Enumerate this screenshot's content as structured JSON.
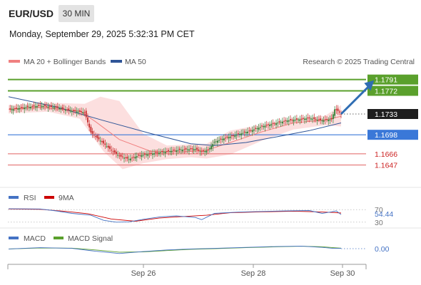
{
  "header": {
    "symbol": "EUR/USD",
    "timeframe": "30 MIN",
    "datetime": "Monday, September 29, 2025 5:32:31 PM CET"
  },
  "legend": {
    "ma20_label": "MA 20 + Bollinger Bands",
    "ma50_label": "MA 50",
    "credit": "Research © 2025 Trading Central",
    "rsi_label": "RSI",
    "rsi_ma_label": "9MA",
    "macd_label": "MACD",
    "macd_signal_label": "MACD Signal"
  },
  "colors": {
    "ma20": "#f08080",
    "ma50": "#2f5597",
    "resistance": "#5aa02c",
    "pivot": "#3a78d8",
    "support": "#e06060",
    "up_candle": "#2e7d32",
    "down_candle": "#c62828",
    "arrow": "#2f6db3"
  },
  "chart_data": [
    {
      "type": "candlestick",
      "ylim": [
        1.1625,
        1.1805
      ],
      "x_ticks": [
        "Sep 26",
        "Sep 28",
        "Sep 30"
      ],
      "current_price": "1.1733",
      "levels": [
        {
          "label": "1.1791",
          "value": 1.1791,
          "kind": "resistance"
        },
        {
          "label": "1.1772",
          "value": 1.1772,
          "kind": "resistance"
        },
        {
          "label": "1.1698",
          "value": 1.1698,
          "kind": "pivot"
        },
        {
          "label": "1.1666",
          "value": 1.1666,
          "kind": "support"
        },
        {
          "label": "1.1647",
          "value": 1.1647,
          "kind": "support"
        }
      ],
      "close_path": [
        [
          0,
          1.174
        ],
        [
          10,
          1.1744
        ],
        [
          20,
          1.1747
        ],
        [
          30,
          1.1744
        ],
        [
          40,
          1.1738
        ],
        [
          48,
          1.1736
        ],
        [
          52,
          1.1702
        ],
        [
          58,
          1.1688
        ],
        [
          64,
          1.1674
        ],
        [
          70,
          1.1662
        ],
        [
          76,
          1.1657
        ],
        [
          82,
          1.1663
        ],
        [
          90,
          1.1666
        ],
        [
          100,
          1.167
        ],
        [
          110,
          1.1673
        ],
        [
          118,
          1.1674
        ],
        [
          122,
          1.1669
        ],
        [
          126,
          1.1672
        ],
        [
          130,
          1.1686
        ],
        [
          136,
          1.1692
        ],
        [
          144,
          1.1698
        ],
        [
          152,
          1.1704
        ],
        [
          160,
          1.1712
        ],
        [
          168,
          1.1717
        ],
        [
          176,
          1.1722
        ],
        [
          184,
          1.1724
        ],
        [
          190,
          1.1726
        ],
        [
          198,
          1.1722
        ],
        [
          204,
          1.1724
        ],
        [
          206,
          1.1741
        ],
        [
          208,
          1.1738
        ],
        [
          210,
          1.1733
        ]
      ],
      "ma20_path": [
        [
          0,
          1.1741
        ],
        [
          20,
          1.1744
        ],
        [
          45,
          1.1738
        ],
        [
          55,
          1.172
        ],
        [
          70,
          1.169
        ],
        [
          90,
          1.167
        ],
        [
          110,
          1.1669
        ],
        [
          125,
          1.1672
        ],
        [
          140,
          1.1685
        ],
        [
          160,
          1.1703
        ],
        [
          180,
          1.1718
        ],
        [
          200,
          1.1723
        ],
        [
          210,
          1.1729
        ]
      ],
      "ma50_path": [
        [
          0,
          1.1762
        ],
        [
          30,
          1.1745
        ],
        [
          60,
          1.1722
        ],
        [
          90,
          1.17
        ],
        [
          115,
          1.1683
        ],
        [
          130,
          1.168
        ],
        [
          150,
          1.1685
        ],
        [
          170,
          1.1695
        ],
        [
          190,
          1.1705
        ],
        [
          210,
          1.1718
        ]
      ],
      "bb_upper": [
        [
          0,
          1.1748
        ],
        [
          25,
          1.1752
        ],
        [
          48,
          1.175
        ],
        [
          58,
          1.1762
        ],
        [
          70,
          1.1755
        ],
        [
          85,
          1.17
        ],
        [
          100,
          1.168
        ],
        [
          115,
          1.1682
        ],
        [
          125,
          1.1683
        ],
        [
          140,
          1.1705
        ],
        [
          160,
          1.1715
        ],
        [
          180,
          1.1725
        ],
        [
          200,
          1.173
        ],
        [
          210,
          1.1748
        ]
      ],
      "bb_lower": [
        [
          0,
          1.1734
        ],
        [
          25,
          1.1737
        ],
        [
          45,
          1.1725
        ],
        [
          60,
          1.167
        ],
        [
          72,
          1.164
        ],
        [
          85,
          1.165
        ],
        [
          100,
          1.1657
        ],
        [
          115,
          1.166
        ],
        [
          125,
          1.1658
        ],
        [
          140,
          1.1665
        ],
        [
          160,
          1.1688
        ],
        [
          180,
          1.1707
        ],
        [
          200,
          1.1714
        ],
        [
          210,
          1.1712
        ]
      ],
      "forecast_arrow": {
        "from": [
          210,
          1.1733
        ],
        "to": [
          230,
          1.1791
        ]
      }
    },
    {
      "type": "line",
      "name": "RSI",
      "levels": [
        "70",
        "30"
      ],
      "last_value": "54.44",
      "ylim": [
        25,
        75
      ],
      "rsi": [
        [
          0,
          73
        ],
        [
          20,
          72
        ],
        [
          30,
          66
        ],
        [
          40,
          58
        ],
        [
          52,
          52
        ],
        [
          60,
          36
        ],
        [
          68,
          30
        ],
        [
          76,
          31
        ],
        [
          86,
          40
        ],
        [
          96,
          47
        ],
        [
          106,
          50
        ],
        [
          118,
          45
        ],
        [
          122,
          38
        ],
        [
          130,
          58
        ],
        [
          145,
          62
        ],
        [
          160,
          64
        ],
        [
          175,
          66
        ],
        [
          190,
          67
        ],
        [
          198,
          58
        ],
        [
          204,
          63
        ],
        [
          207,
          66
        ],
        [
          210,
          54
        ]
      ],
      "rsi_ma": [
        [
          0,
          72
        ],
        [
          20,
          71
        ],
        [
          35,
          65
        ],
        [
          50,
          57
        ],
        [
          65,
          40
        ],
        [
          80,
          33
        ],
        [
          95,
          43
        ],
        [
          110,
          48
        ],
        [
          125,
          52
        ],
        [
          140,
          60
        ],
        [
          160,
          63
        ],
        [
          180,
          65
        ],
        [
          195,
          63
        ],
        [
          205,
          61
        ],
        [
          210,
          59
        ]
      ]
    },
    {
      "type": "line",
      "name": "MACD",
      "last_value": "0.00",
      "ylim": [
        -1,
        1
      ],
      "macd": [
        [
          0,
          -0.05
        ],
        [
          20,
          0.15
        ],
        [
          40,
          0.05
        ],
        [
          55,
          -0.4
        ],
        [
          70,
          -0.75
        ],
        [
          85,
          -0.45
        ],
        [
          100,
          -0.2
        ],
        [
          115,
          -0.05
        ],
        [
          130,
          0.05
        ],
        [
          150,
          0.2
        ],
        [
          170,
          0.35
        ],
        [
          185,
          0.4
        ],
        [
          198,
          0.2
        ],
        [
          205,
          0.05
        ],
        [
          210,
          0.05
        ]
      ],
      "signal": [
        [
          0,
          -0.05
        ],
        [
          20,
          0.1
        ],
        [
          40,
          0.08
        ],
        [
          55,
          -0.2
        ],
        [
          70,
          -0.55
        ],
        [
          85,
          -0.5
        ],
        [
          100,
          -0.3
        ],
        [
          115,
          -0.1
        ],
        [
          130,
          0.0
        ],
        [
          150,
          0.15
        ],
        [
          170,
          0.3
        ],
        [
          185,
          0.38
        ],
        [
          198,
          0.3
        ],
        [
          205,
          0.15
        ],
        [
          210,
          0.08
        ]
      ]
    }
  ]
}
